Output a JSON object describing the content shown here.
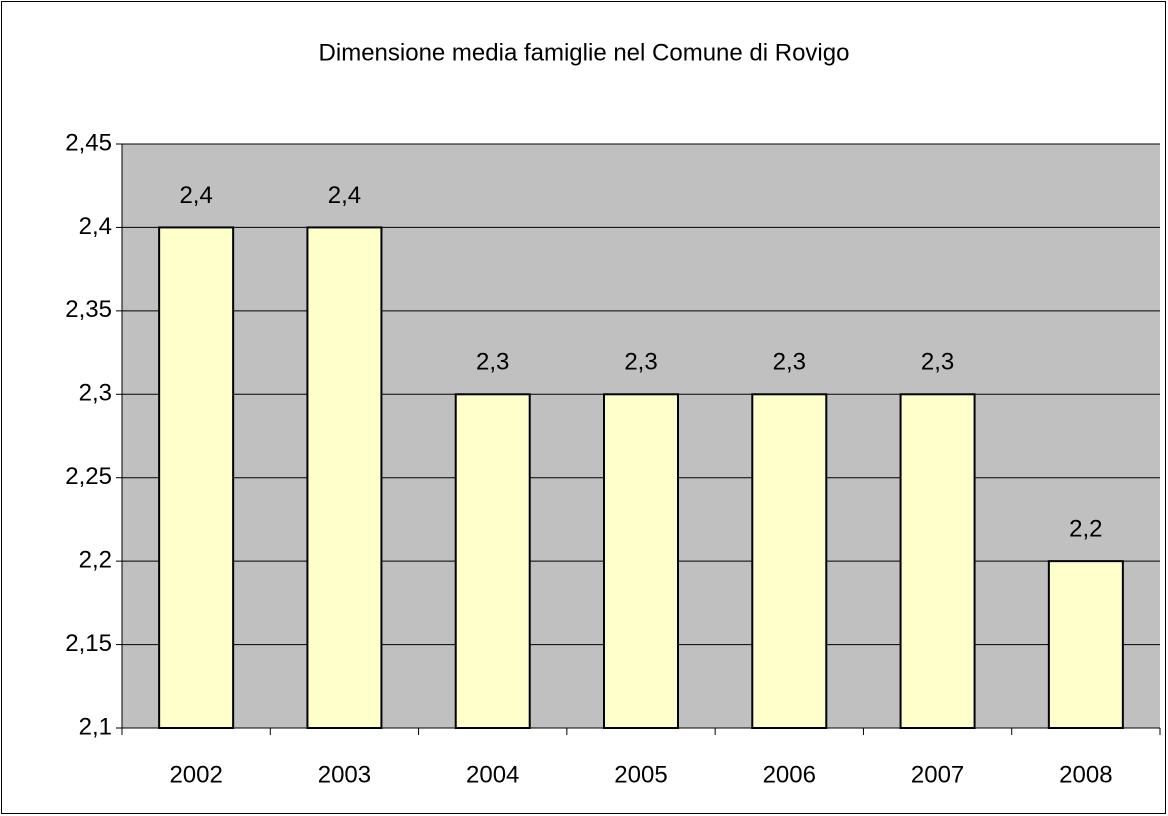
{
  "chart_data": {
    "type": "bar",
    "title": "Dimensione media famiglie nel Comune di Rovigo",
    "categories": [
      "2002",
      "2003",
      "2004",
      "2005",
      "2006",
      "2007",
      "2008"
    ],
    "values": [
      2.4,
      2.4,
      2.3,
      2.3,
      2.3,
      2.3,
      2.2
    ],
    "value_labels": [
      "2,4",
      "2,4",
      "2,3",
      "2,3",
      "2,3",
      "2,3",
      "2,2"
    ],
    "color": "#ffffcc",
    "ylim": [
      2.1,
      2.45
    ],
    "yticks": [
      {
        "value": 2.1,
        "label": "2,1"
      },
      {
        "value": 2.15,
        "label": "2,15"
      },
      {
        "value": 2.2,
        "label": "2,2"
      },
      {
        "value": 2.25,
        "label": "2,25"
      },
      {
        "value": 2.3,
        "label": "2,3"
      },
      {
        "value": 2.35,
        "label": "2,35"
      },
      {
        "value": 2.4,
        "label": "2,4"
      },
      {
        "value": 2.45,
        "label": "2,45"
      }
    ],
    "grid": true
  }
}
